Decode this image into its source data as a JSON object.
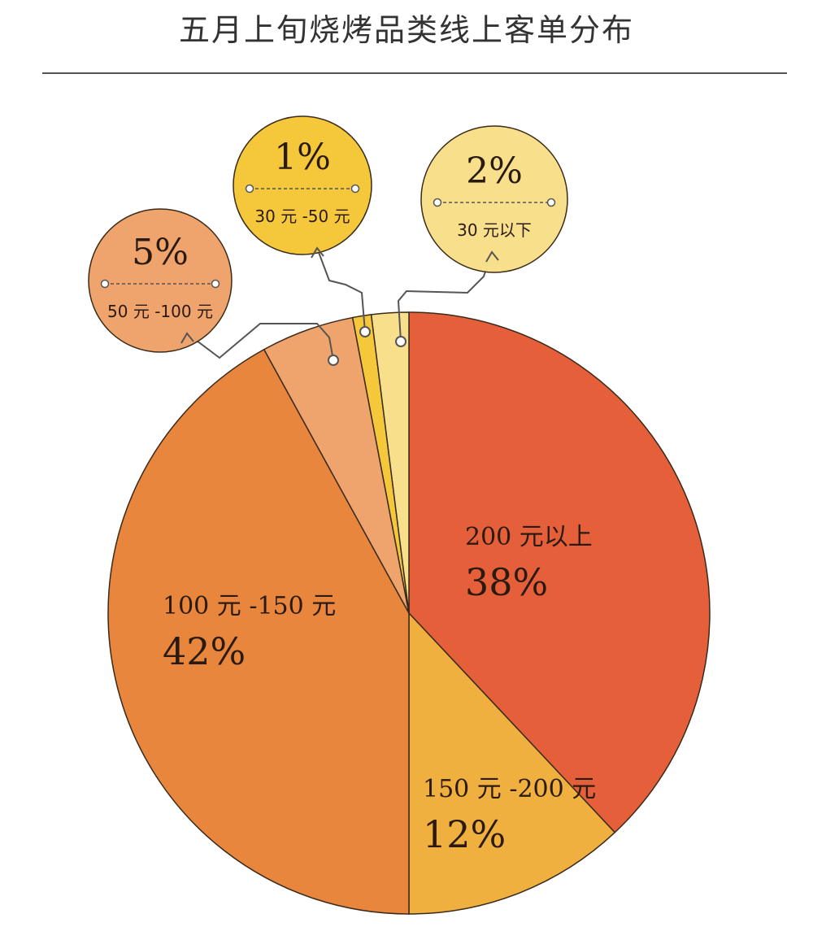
{
  "chart_data": {
    "type": "pie",
    "title": "五月上旬烧烤品类线上客单分布",
    "start": "top",
    "direction": "clockwise",
    "slices": [
      {
        "label": "200 元以上",
        "value": 38,
        "value_label": "38%",
        "color": "#e5603a",
        "labeling": "inside"
      },
      {
        "label": "150 元 -200 元",
        "value": 12,
        "value_label": "12%",
        "color": "#f0b040",
        "labeling": "inside"
      },
      {
        "label": "100 元 -150 元",
        "value": 42,
        "value_label": "42%",
        "color": "#e8863d",
        "labeling": "inside"
      },
      {
        "label": "50 元 -100 元",
        "value": 5,
        "value_label": "5%",
        "color": "#eea46c",
        "labeling": "callout"
      },
      {
        "label": "30 元 -50 元",
        "value": 1,
        "value_label": "1%",
        "color": "#f5c83c",
        "labeling": "callout"
      },
      {
        "label": "30 元以下",
        "value": 2,
        "value_label": "2%",
        "color": "#f8df8c",
        "labeling": "callout"
      }
    ],
    "outline_color": "#3a2a1a",
    "legend": "none"
  }
}
